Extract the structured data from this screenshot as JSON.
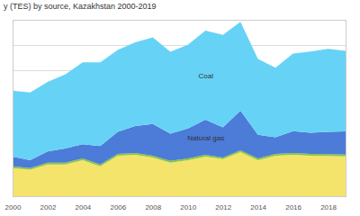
{
  "chart_data": {
    "type": "area",
    "title": "y (TES) by source, Kazakhstan 2000-2019",
    "stacked": true,
    "grid": true,
    "tick_labels": "x",
    "x": [
      2000,
      2001,
      2002,
      2003,
      2004,
      2005,
      2006,
      2007,
      2008,
      2009,
      2010,
      2011,
      2012,
      2013,
      2014,
      2015,
      2016,
      2017,
      2018,
      2019
    ],
    "xlim": [
      2000,
      2019
    ],
    "xticks": [
      2000,
      2002,
      2004,
      2006,
      2008,
      2010,
      2012,
      2014,
      2016,
      2018
    ],
    "ylim": [
      0,
      3500000
    ],
    "yticks": [
      0,
      500000,
      1000000,
      1500000,
      2000000,
      2500000,
      3000000,
      3500000
    ],
    "series": [
      {
        "name": null,
        "color": "#f4e46c",
        "values": [
          560000,
          525000,
          630000,
          630000,
          715000,
          595000,
          805000,
          820000,
          770000,
          665000,
          715000,
          785000,
          735000,
          875000,
          715000,
          805000,
          820000,
          805000,
          800000,
          790000
        ]
      },
      {
        "name": null,
        "color": "#8cc63f",
        "values": [
          35000,
          35000,
          35000,
          35000,
          35000,
          35000,
          35000,
          35000,
          35000,
          35000,
          35000,
          35000,
          35000,
          35000,
          35000,
          35000,
          35000,
          35000,
          35000,
          35000
        ]
      },
      {
        "name": "Natural gas",
        "color": "#4c7bd8",
        "values": [
          190000,
          155000,
          225000,
          280000,
          280000,
          365000,
          435000,
          540000,
          630000,
          540000,
          595000,
          700000,
          595000,
          785000,
          470000,
          330000,
          435000,
          420000,
          440000,
          460000
        ]
      },
      {
        "name": "Coal",
        "color": "#66d3f6",
        "values": [
          1310000,
          1345000,
          1380000,
          1470000,
          1625000,
          1660000,
          1625000,
          1660000,
          1715000,
          1625000,
          1660000,
          1765000,
          1835000,
          1765000,
          1505000,
          1380000,
          1540000,
          1610000,
          1650000,
          1600000
        ]
      }
    ]
  }
}
